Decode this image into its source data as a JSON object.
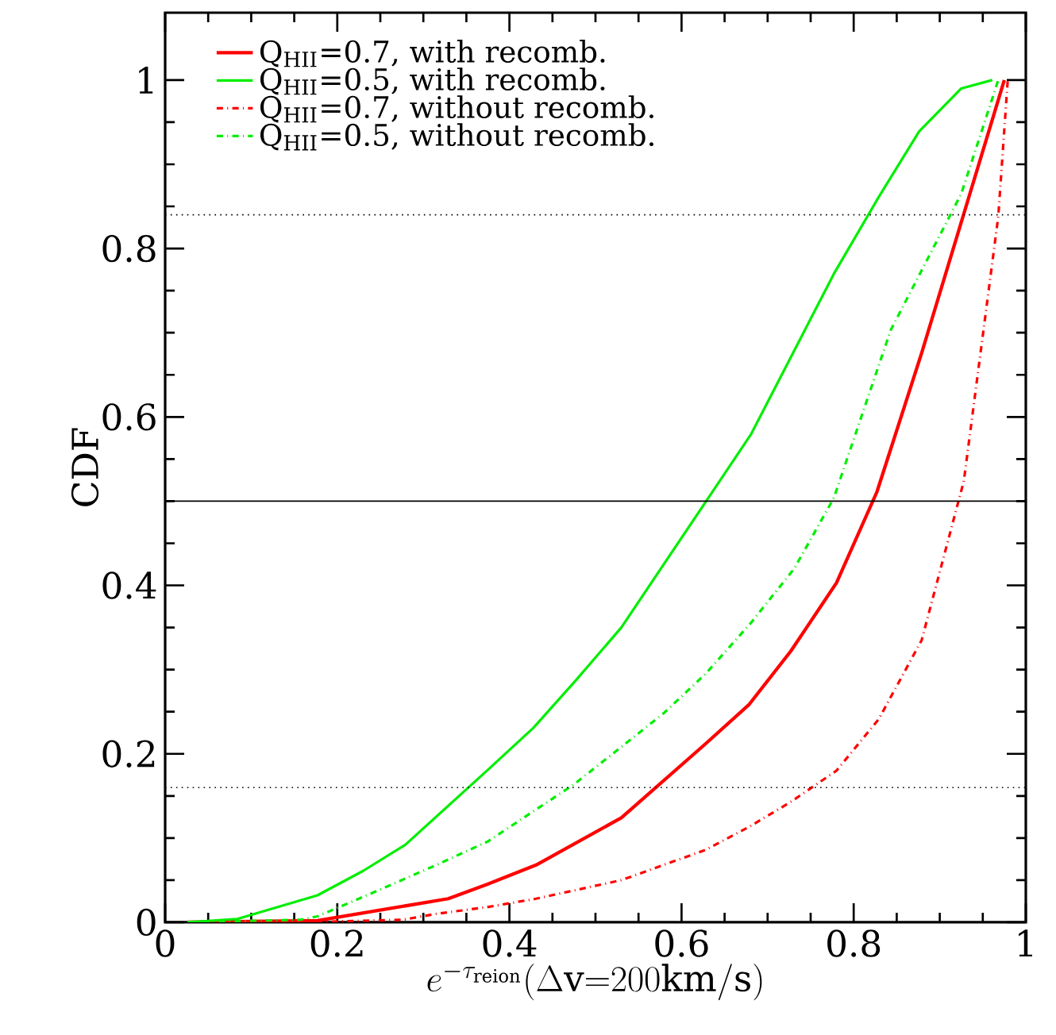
{
  "chart_data": {
    "type": "line",
    "xlabel": "e^{-\\tau_{\\rm reion}}(\\Delta{\\rm v}{=}200{\\rm km/s})",
    "ylabel": "CDF",
    "xlim": [
      0,
      1
    ],
    "ylim": [
      0,
      1.08
    ],
    "xticks": [
      0,
      0.2,
      0.4,
      0.6,
      0.8,
      1
    ],
    "yticks": [
      0,
      0.2,
      0.4,
      0.6,
      0.8,
      1
    ],
    "legend": "top left",
    "grid": false,
    "series": [
      {
        "name": "Q$_{HII}$=0.7, with recomb.",
        "color": "#ff0000",
        "line_style": "solid",
        "x": [
          0.026,
          0.177,
          0.329,
          0.374,
          0.431,
          0.53,
          0.628,
          0.678,
          0.727,
          0.78,
          0.827,
          0.879,
          0.975
        ],
        "values": [
          0,
          0.002,
          0.028,
          0.045,
          0.068,
          0.124,
          0.212,
          0.258,
          0.322,
          0.403,
          0.511,
          0.676,
          1.0
        ]
      },
      {
        "name": "Q$_{HII}$=0.5, with recomb.",
        "color": "#00ee00",
        "line_style": "solid",
        "x": [
          0.026,
          0.084,
          0.177,
          0.23,
          0.279,
          0.375,
          0.428,
          0.477,
          0.53,
          0.628,
          0.681,
          0.777,
          0.829,
          0.876,
          0.925,
          0.961
        ],
        "values": [
          0,
          0.004,
          0.032,
          0.061,
          0.092,
          0.181,
          0.231,
          0.287,
          0.35,
          0.499,
          0.58,
          0.77,
          0.861,
          0.939,
          0.99,
          1.0
        ]
      },
      {
        "name": "Q$_{HII}$=0.7, without recomb.",
        "color": "#ff0000",
        "line_style": "dashdot",
        "x": [
          0.157,
          0.276,
          0.315,
          0.374,
          0.431,
          0.53,
          0.628,
          0.678,
          0.727,
          0.78,
          0.829,
          0.879,
          0.928,
          0.968,
          0.979
        ],
        "values": [
          0,
          0.003,
          0.01,
          0.018,
          0.028,
          0.05,
          0.086,
          0.113,
          0.143,
          0.18,
          0.241,
          0.335,
          0.524,
          0.838,
          1.0
        ]
      },
      {
        "name": "Q$_{HII}$=0.5, without recomb.",
        "color": "#00ee00",
        "line_style": "dashdot",
        "x": [
          0.026,
          0.157,
          0.177,
          0.248,
          0.315,
          0.375,
          0.474,
          0.526,
          0.579,
          0.628,
          0.681,
          0.731,
          0.777,
          0.843,
          0.925,
          0.968
        ],
        "values": [
          0,
          0.003,
          0.007,
          0.038,
          0.068,
          0.096,
          0.163,
          0.205,
          0.248,
          0.295,
          0.356,
          0.42,
          0.504,
          0.703,
          0.865,
          1.0
        ]
      }
    ],
    "ref_lines": [
      {
        "axis": "y",
        "value": 0.84,
        "line_style": "dotted"
      },
      {
        "axis": "y",
        "value": 0.5,
        "line_style": "solid"
      },
      {
        "axis": "y",
        "value": 0.16,
        "line_style": "dotted"
      }
    ]
  }
}
